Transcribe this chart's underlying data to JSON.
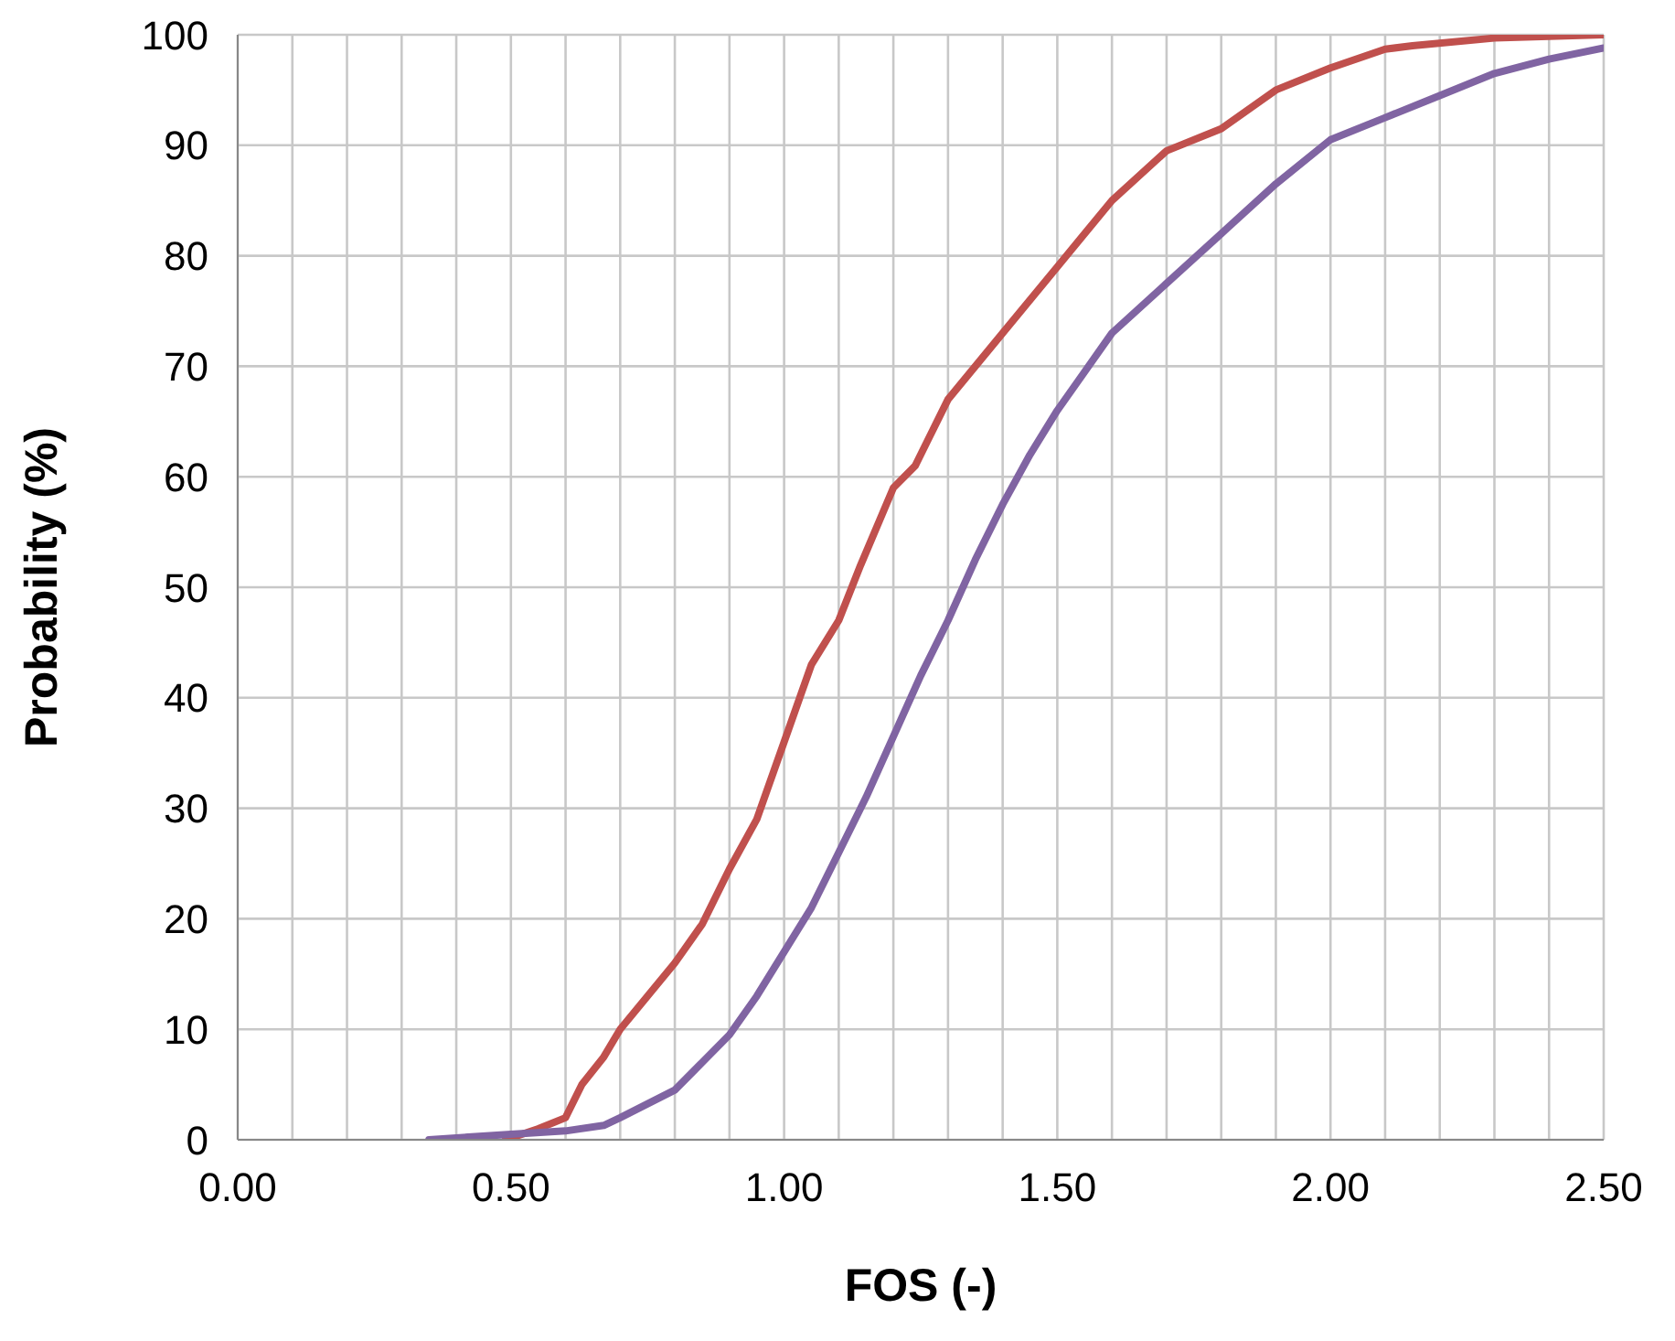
{
  "chart_data": {
    "type": "line",
    "xlabel": "FOS (-)",
    "ylabel": "Probability (%)",
    "xlim": [
      0,
      2.5
    ],
    "xticks": [
      {
        "value": 0,
        "label": "0.00"
      },
      {
        "value": 0.1,
        "label": null
      },
      {
        "value": 0.2,
        "label": null
      },
      {
        "value": 0.3,
        "label": null
      },
      {
        "value": 0.4,
        "label": null
      },
      {
        "value": 0.5,
        "label": "0.50"
      },
      {
        "value": 0.6,
        "label": null
      },
      {
        "value": 0.7,
        "label": null
      },
      {
        "value": 0.8,
        "label": null
      },
      {
        "value": 0.9,
        "label": null
      },
      {
        "value": 1,
        "label": "1.00"
      },
      {
        "value": 1.1,
        "label": null
      },
      {
        "value": 1.2,
        "label": null
      },
      {
        "value": 1.3,
        "label": null
      },
      {
        "value": 1.4,
        "label": null
      },
      {
        "value": 1.5,
        "label": "1.50"
      },
      {
        "value": 1.6,
        "label": null
      },
      {
        "value": 1.7,
        "label": null
      },
      {
        "value": 1.8,
        "label": null
      },
      {
        "value": 1.9,
        "label": null
      },
      {
        "value": 2,
        "label": "2.00"
      },
      {
        "value": 2.1,
        "label": null
      },
      {
        "value": 2.2,
        "label": null
      },
      {
        "value": 2.3,
        "label": null
      },
      {
        "value": 2.4,
        "label": null
      },
      {
        "value": 2.5,
        "label": "2.50"
      }
    ],
    "ylim": [
      0,
      100
    ],
    "yticks": [
      0,
      10,
      20,
      30,
      40,
      50,
      60,
      70,
      80,
      90,
      100
    ],
    "grid": true,
    "marker": "none",
    "line_style": "solid",
    "series": [
      {
        "color": "#c0504d",
        "x": [
          0.49,
          0.55,
          0.6,
          0.63,
          0.67,
          0.7,
          0.75,
          0.8,
          0.85,
          0.9,
          0.95,
          1.0,
          1.05,
          1.1,
          1.14,
          1.2,
          1.24,
          1.3,
          1.4,
          1.5,
          1.6,
          1.7,
          1.8,
          1.9,
          2.0,
          2.1,
          2.15,
          2.3,
          2.5
        ],
        "values": [
          0,
          1,
          2,
          5,
          7.5,
          10,
          13,
          16,
          19.5,
          24.5,
          29,
          36,
          43,
          47,
          52,
          59,
          61,
          67,
          73,
          79,
          85,
          89.5,
          91.5,
          95,
          97,
          98.7,
          99,
          99.7,
          100
        ]
      },
      {
        "color": "#8064a2",
        "x": [
          0.35,
          0.5,
          0.6,
          0.67,
          0.7,
          0.8,
          0.85,
          0.9,
          0.95,
          1.0,
          1.05,
          1.1,
          1.15,
          1.2,
          1.25,
          1.3,
          1.35,
          1.4,
          1.45,
          1.5,
          1.55,
          1.6,
          1.7,
          1.8,
          1.9,
          2.0,
          2.1,
          2.2,
          2.3,
          2.4,
          2.5
        ],
        "values": [
          0,
          0.5,
          0.8,
          1.3,
          2,
          4.5,
          7,
          9.5,
          13,
          17,
          21,
          26,
          31,
          36.5,
          42,
          47,
          52.5,
          57.5,
          62,
          66,
          69.5,
          73,
          77.5,
          82,
          86.5,
          90.5,
          92.5,
          94.5,
          96.5,
          97.8,
          98.8
        ]
      }
    ]
  }
}
